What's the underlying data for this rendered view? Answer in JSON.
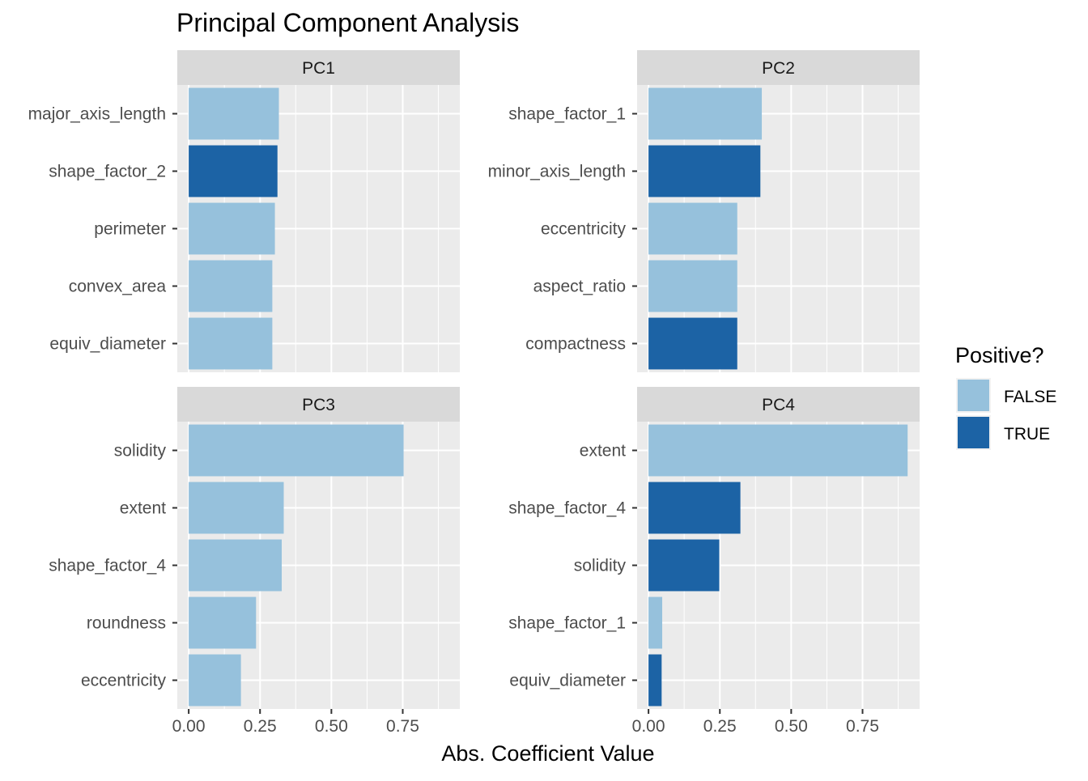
{
  "chart_data": {
    "type": "bar",
    "orientation": "horizontal",
    "title": "Principal Component Analysis",
    "xlabel": "Abs. Coefficient Value",
    "xlim": [
      -0.04,
      0.95
    ],
    "xticks": [
      0.0,
      0.25,
      0.5,
      0.75
    ],
    "xtick_labels": [
      "0.00",
      "0.25",
      "0.50",
      "0.75"
    ],
    "grid": true,
    "legend": {
      "title": "Positive?",
      "placement": "right",
      "entries": [
        {
          "label": "FALSE",
          "color": "#96c1dc"
        },
        {
          "label": "TRUE",
          "color": "#1c63a5"
        }
      ]
    },
    "facets": [
      {
        "name": "PC1",
        "categories": [
          "major_axis_length",
          "shape_factor_2",
          "perimeter",
          "convex_area",
          "equiv_diameter"
        ],
        "values": [
          0.316,
          0.311,
          0.302,
          0.293,
          0.293
        ],
        "positive": [
          false,
          true,
          false,
          false,
          false
        ]
      },
      {
        "name": "PC2",
        "categories": [
          "shape_factor_1",
          "minor_axis_length",
          "eccentricity",
          "aspect_ratio",
          "compactness"
        ],
        "values": [
          0.397,
          0.392,
          0.311,
          0.311,
          0.311
        ],
        "positive": [
          false,
          true,
          false,
          false,
          true
        ]
      },
      {
        "name": "PC3",
        "categories": [
          "solidity",
          "extent",
          "shape_factor_4",
          "roundness",
          "eccentricity"
        ],
        "values": [
          0.753,
          0.333,
          0.326,
          0.236,
          0.183
        ],
        "positive": [
          false,
          false,
          false,
          false,
          false
        ]
      },
      {
        "name": "PC4",
        "categories": [
          "extent",
          "shape_factor_4",
          "solidity",
          "shape_factor_1",
          "equiv_diameter"
        ],
        "values": [
          0.908,
          0.322,
          0.248,
          0.048,
          0.046
        ],
        "positive": [
          false,
          true,
          true,
          false,
          true
        ]
      }
    ]
  }
}
